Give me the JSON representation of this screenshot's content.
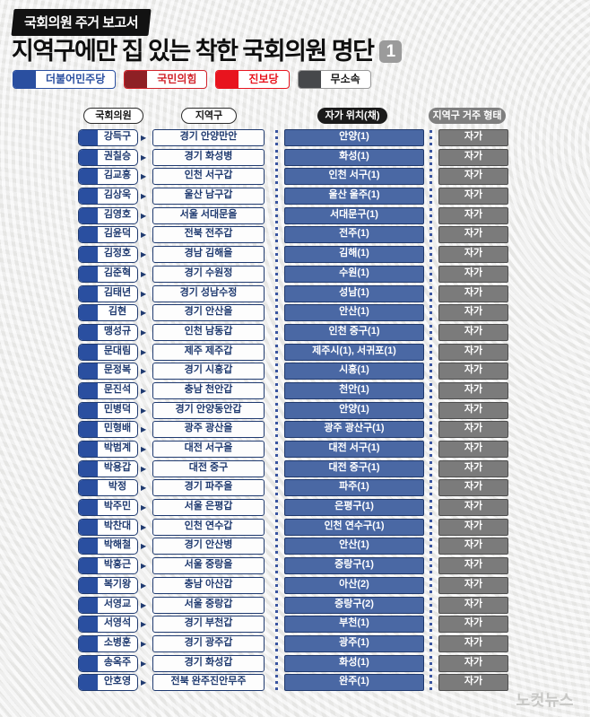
{
  "header": {
    "report_badge": "국회의원 주거 보고서",
    "title": "지역구에만 집 있는 착한 국회의원 명단",
    "page_number": "1"
  },
  "legend": [
    {
      "label": "더불어민주당",
      "swatch": "#2a4fa0",
      "border": "#2a4fa0",
      "text": "#2a4fa0"
    },
    {
      "label": "국민의힘",
      "swatch": "#8e2025",
      "border": "#d2232a",
      "text": "#d2232a"
    },
    {
      "label": "진보당",
      "swatch": "#e8141e",
      "border": "#e8141e",
      "text": "#e8141e"
    },
    {
      "label": "무소속",
      "swatch": "#46484b",
      "border": "#9a9a9a",
      "text": "#1a1a1a"
    }
  ],
  "party_colors": {
    "더불어민주당": "#2a4fa0",
    "국민의힘": "#8e2025",
    "진보당": "#e8141e",
    "무소속": "#46484b"
  },
  "table": {
    "columns": {
      "member": "국회의원",
      "district": "지역구",
      "home_location": "자가 위치(채)",
      "residence_type": "지역구 거주 형태"
    },
    "rows": [
      {
        "party": "더불어민주당",
        "name": "강득구",
        "district": "경기 안양만안",
        "home": "안양(1)",
        "residence": "자가"
      },
      {
        "party": "더불어민주당",
        "name": "권칠승",
        "district": "경기 화성병",
        "home": "화성(1)",
        "residence": "자가"
      },
      {
        "party": "더불어민주당",
        "name": "김교흥",
        "district": "인천 서구갑",
        "home": "인천 서구(1)",
        "residence": "자가"
      },
      {
        "party": "더불어민주당",
        "name": "김상욱",
        "district": "울산 남구갑",
        "home": "울산 울주(1)",
        "residence": "자가"
      },
      {
        "party": "더불어민주당",
        "name": "김영호",
        "district": "서울 서대문을",
        "home": "서대문구(1)",
        "residence": "자가"
      },
      {
        "party": "더불어민주당",
        "name": "김윤덕",
        "district": "전북 전주갑",
        "home": "전주(1)",
        "residence": "자가"
      },
      {
        "party": "더불어민주당",
        "name": "김정호",
        "district": "경남 김해을",
        "home": "김해(1)",
        "residence": "자가"
      },
      {
        "party": "더불어민주당",
        "name": "김준혁",
        "district": "경기 수원정",
        "home": "수원(1)",
        "residence": "자가"
      },
      {
        "party": "더불어민주당",
        "name": "김태년",
        "district": "경기 성남수정",
        "home": "성남(1)",
        "residence": "자가"
      },
      {
        "party": "더불어민주당",
        "name": "김현",
        "district": "경기 안산을",
        "home": "안산(1)",
        "residence": "자가"
      },
      {
        "party": "더불어민주당",
        "name": "맹성규",
        "district": "인천 남동갑",
        "home": "인천 중구(1)",
        "residence": "자가"
      },
      {
        "party": "더불어민주당",
        "name": "문대림",
        "district": "제주 제주갑",
        "home": "제주시(1), 서귀포(1)",
        "residence": "자가"
      },
      {
        "party": "더불어민주당",
        "name": "문정복",
        "district": "경기 시흥갑",
        "home": "시흥(1)",
        "residence": "자가"
      },
      {
        "party": "더불어민주당",
        "name": "문진석",
        "district": "충남 천안갑",
        "home": "천안(1)",
        "residence": "자가"
      },
      {
        "party": "더불어민주당",
        "name": "민병덕",
        "district": "경기 안양동안갑",
        "home": "안양(1)",
        "residence": "자가"
      },
      {
        "party": "더불어민주당",
        "name": "민형배",
        "district": "광주 광산을",
        "home": "광주 광산구(1)",
        "residence": "자가"
      },
      {
        "party": "더불어민주당",
        "name": "박범계",
        "district": "대전 서구을",
        "home": "대전 서구(1)",
        "residence": "자가"
      },
      {
        "party": "더불어민주당",
        "name": "박용갑",
        "district": "대전 중구",
        "home": "대전 중구(1)",
        "residence": "자가"
      },
      {
        "party": "더불어민주당",
        "name": "박정",
        "district": "경기 파주을",
        "home": "파주(1)",
        "residence": "자가"
      },
      {
        "party": "더불어민주당",
        "name": "박주민",
        "district": "서울 은평갑",
        "home": "은평구(1)",
        "residence": "자가"
      },
      {
        "party": "더불어민주당",
        "name": "박찬대",
        "district": "인천 연수갑",
        "home": "인천 연수구(1)",
        "residence": "자가"
      },
      {
        "party": "더불어민주당",
        "name": "박해철",
        "district": "경기 안산병",
        "home": "안산(1)",
        "residence": "자가"
      },
      {
        "party": "더불어민주당",
        "name": "박홍근",
        "district": "서울 중랑을",
        "home": "중랑구(1)",
        "residence": "자가"
      },
      {
        "party": "더불어민주당",
        "name": "복기왕",
        "district": "충남 아산갑",
        "home": "아산(2)",
        "residence": "자가"
      },
      {
        "party": "더불어민주당",
        "name": "서영교",
        "district": "서울 중랑갑",
        "home": "중랑구(2)",
        "residence": "자가"
      },
      {
        "party": "더불어민주당",
        "name": "서영석",
        "district": "경기 부천갑",
        "home": "부천(1)",
        "residence": "자가"
      },
      {
        "party": "더불어민주당",
        "name": "소병훈",
        "district": "경기 광주갑",
        "home": "광주(1)",
        "residence": "자가"
      },
      {
        "party": "더불어민주당",
        "name": "송옥주",
        "district": "경기 화성갑",
        "home": "화성(1)",
        "residence": "자가"
      },
      {
        "party": "더불어민주당",
        "name": "안호영",
        "district": "전북 완주진안무주",
        "home": "완주(1)",
        "residence": "자가"
      }
    ]
  },
  "watermark": "노컷뉴스"
}
